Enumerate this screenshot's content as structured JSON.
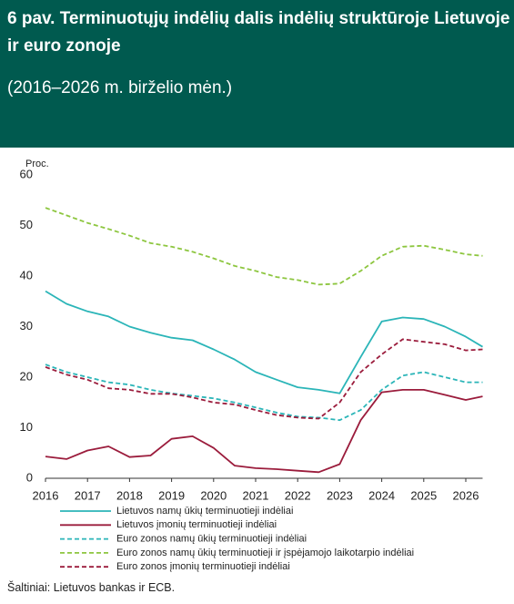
{
  "chart_data": {
    "type": "line",
    "title": "6 pav. Terminuotųjų indėlių dalis indėlių struktūroje Lietuvoje ir euro zonoje",
    "subtitle": "(2016–2026 m. birželio mėn.)",
    "y_label": "Proc.",
    "source": "Šaltiniai: Lietuvos bankas ir ECB.",
    "x": [
      2016,
      2016.5,
      2017,
      2017.5,
      2018,
      2018.5,
      2019,
      2019.5,
      2020,
      2020.5,
      2021,
      2021.5,
      2022,
      2022.5,
      2023,
      2023.5,
      2024,
      2024.5,
      2025,
      2025.5,
      2026,
      2026.4
    ],
    "xlim": [
      2016,
      2026.4
    ],
    "xticks": [
      2016,
      2017,
      2018,
      2019,
      2020,
      2021,
      2022,
      2023,
      2024,
      2025,
      2026
    ],
    "ylim": [
      0,
      60
    ],
    "yticks": [
      0,
      10,
      20,
      30,
      40,
      50,
      60
    ],
    "series": [
      {
        "name": "Lietuvos namų ūkių terminuotieji indėliai",
        "color": "#2bb5b8",
        "dash": false,
        "values": [
          37,
          34.5,
          33,
          32,
          30,
          28.8,
          27.8,
          27.3,
          25.5,
          23.5,
          21,
          19.5,
          18,
          17.5,
          16.8,
          24,
          31,
          31.8,
          31.5,
          30,
          28,
          26
        ]
      },
      {
        "name": "Lietuvos įmonių terminuotieji indėliai",
        "color": "#9b1c3c",
        "dash": false,
        "values": [
          4.3,
          3.8,
          5.5,
          6.3,
          4.2,
          4.5,
          7.8,
          8.3,
          6,
          2.5,
          2,
          1.8,
          1.5,
          1.2,
          2.8,
          11.5,
          17,
          17.5,
          17.5,
          16.5,
          15.5,
          16.2
        ]
      },
      {
        "name": "Euro zonos namų ūkių terminuotieji indėliai",
        "color": "#2bb5b8",
        "dash": true,
        "values": [
          22.5,
          21,
          20,
          19,
          18.5,
          17.5,
          16.8,
          16.3,
          15.8,
          15,
          14,
          13,
          12.2,
          12,
          11.5,
          13.5,
          17.5,
          20.3,
          21,
          20,
          19,
          19
        ]
      },
      {
        "name": "Euro zonos namų ūkių terminuotieji ir įspėjamojo laikotarpio indėliai",
        "color": "#8dc63f",
        "dash": true,
        "values": [
          53.5,
          52,
          50.5,
          49.3,
          48,
          46.5,
          45.8,
          44.8,
          43.5,
          42,
          41,
          39.8,
          39.2,
          38.3,
          38.5,
          41,
          44,
          45.8,
          46,
          45.2,
          44.3,
          44
        ]
      },
      {
        "name": "Euro zonos įmonių terminuotieji indėliai",
        "color": "#9b1c3c",
        "dash": true,
        "values": [
          22,
          20.5,
          19.5,
          17.8,
          17.5,
          16.7,
          16.7,
          16,
          15,
          14.6,
          13.5,
          12.5,
          12,
          11.8,
          15,
          21,
          24.5,
          27.5,
          27,
          26.5,
          25.3,
          25.5
        ]
      }
    ]
  }
}
